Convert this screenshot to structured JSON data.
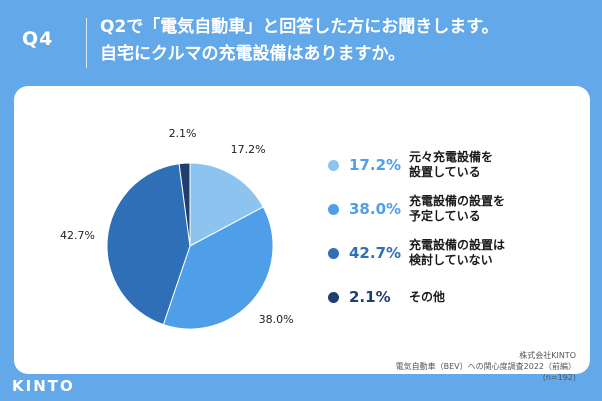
{
  "header": {
    "qnum": "Q4",
    "question_line1": "Q2で「電気自動車」と回答した方にお聞きします。",
    "question_line2": "自宅にクルマの充電設備はありますか。"
  },
  "chart_data": {
    "type": "pie",
    "unit": "%",
    "categories": [
      "元々充電設備を設置している",
      "充電設備の設置を予定している",
      "充電設備の設置は検討していない",
      "その他"
    ],
    "legend_lines": [
      [
        "元々充電設備を",
        "設置している"
      ],
      [
        "充電設備の設置を",
        "予定している"
      ],
      [
        "充電設備の設置は",
        "検討していない"
      ],
      [
        "その他"
      ]
    ],
    "values": [
      17.2,
      38.0,
      42.7,
      2.1
    ],
    "labels": [
      "17.2%",
      "38.0%",
      "42.7%",
      "2.1%"
    ],
    "colors": [
      "#8cc4ef",
      "#4e9ee8",
      "#2f6fb8",
      "#1f3f6e"
    ],
    "legend_position": "right"
  },
  "source": {
    "company": "株式会社KINTO",
    "survey": "電気自動車（BEV）への関心度調査2022（前編）",
    "sample": "(n=192)"
  },
  "logo": {
    "text": "KINTO"
  }
}
